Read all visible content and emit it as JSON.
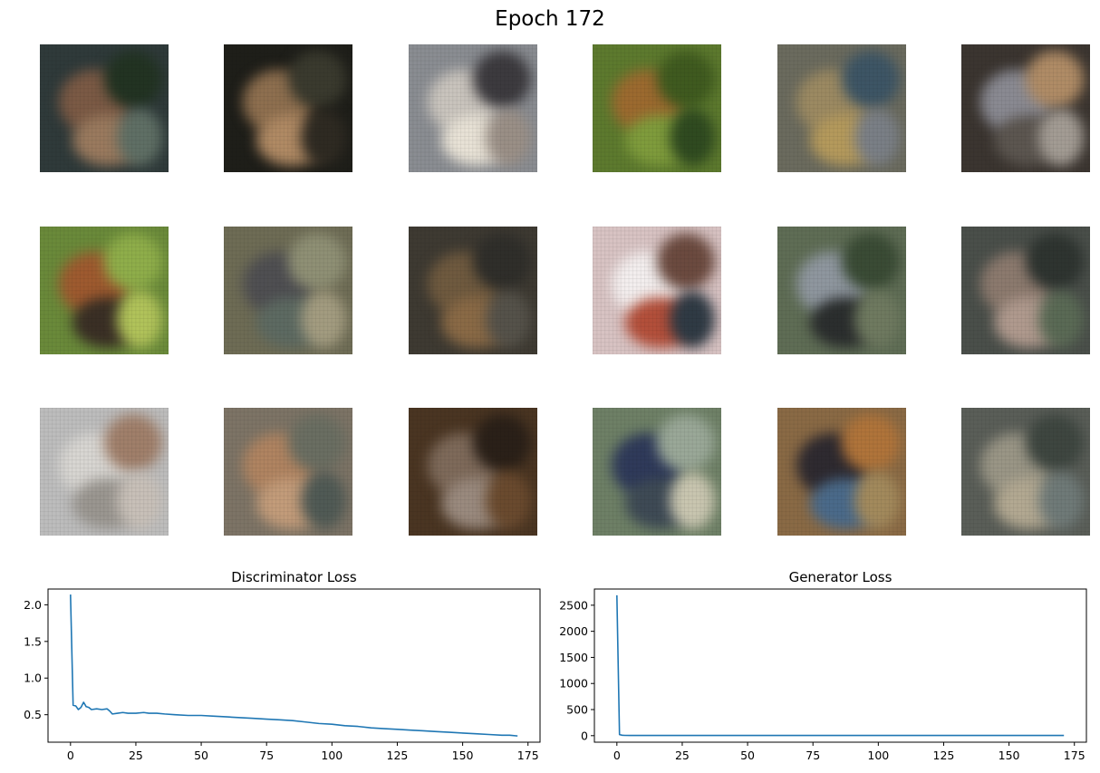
{
  "figure": {
    "title": "Epoch 172"
  },
  "samples": [
    {
      "base": "#2f3a3a",
      "blobs": [
        "#7b5a45",
        "#223322",
        "#9a7a5e",
        "#5f6f65"
      ]
    },
    {
      "base": "#1e1e19",
      "blobs": [
        "#8e6f4f",
        "#3a3a2e",
        "#b08a64",
        "#2e2a22"
      ]
    },
    {
      "base": "#8a8d92",
      "blobs": [
        "#c9c4bd",
        "#3c3a3e",
        "#e8e2d6",
        "#9a8f86"
      ]
    },
    {
      "base": "#5d7a2e",
      "blobs": [
        "#9c6a2f",
        "#3f5a1f",
        "#7f9c3c",
        "#2f4a20"
      ]
    },
    {
      "base": "#6b6b5e",
      "blobs": [
        "#9c8a62",
        "#3d5565",
        "#b59a5c",
        "#7a7f86"
      ]
    },
    {
      "base": "#3b3530",
      "blobs": [
        "#8a8a92",
        "#b08c66",
        "#5c5650",
        "#a39c94"
      ]
    },
    {
      "base": "#6a8a3a",
      "blobs": [
        "#9e5a2f",
        "#8fae4a",
        "#3a2f25",
        "#b1c35a"
      ]
    },
    {
      "base": "#6e6c55",
      "blobs": [
        "#4f4f52",
        "#8f9075",
        "#5d6a62",
        "#a39c80"
      ]
    },
    {
      "base": "#3e3a32",
      "blobs": [
        "#6f5a3f",
        "#2f2e2a",
        "#8a6a46",
        "#55524a"
      ]
    },
    {
      "base": "#d8c3c3",
      "blobs": [
        "#f3eeee",
        "#6b4a3f",
        "#b34f3a",
        "#2f3a44"
      ]
    },
    {
      "base": "#5f6d55",
      "blobs": [
        "#8f979f",
        "#3a4b35",
        "#2b2e2e",
        "#6f7a60"
      ]
    },
    {
      "base": "#4a4f4a",
      "blobs": [
        "#8c7a6e",
        "#2e3430",
        "#b09a8e",
        "#5a6a55"
      ]
    },
    {
      "base": "#bdbdbd",
      "blobs": [
        "#d8d6d2",
        "#a07f6a",
        "#9a9690",
        "#c8c0b8"
      ]
    },
    {
      "base": "#7d7466",
      "blobs": [
        "#b08461",
        "#6a6e62",
        "#c39c7a",
        "#505a55"
      ]
    },
    {
      "base": "#4a3522",
      "blobs": [
        "#7e6a5a",
        "#2a2018",
        "#9a8a7e",
        "#6a4a2e"
      ]
    },
    {
      "base": "#6e8066",
      "blobs": [
        "#2f3a5a",
        "#9aa898",
        "#3e4a55",
        "#c9c6b0"
      ]
    },
    {
      "base": "#8a6a45",
      "blobs": [
        "#2e2a30",
        "#b0743a",
        "#4a6a8a",
        "#a38a5c"
      ]
    },
    {
      "base": "#5a5e58",
      "blobs": [
        "#9a9686",
        "#3e4640",
        "#b3a992",
        "#6f7a78"
      ]
    }
  ],
  "chart_data": [
    {
      "type": "line",
      "title": "Discriminator Loss",
      "xlabel": "",
      "ylabel": "",
      "xlim": [
        -8.6,
        179.6
      ],
      "ylim": [
        0.125,
        2.215
      ],
      "xticks": [
        0,
        25,
        50,
        75,
        100,
        125,
        150,
        175
      ],
      "yticks": [
        0.5,
        1.0,
        1.5,
        2.0
      ],
      "ytick_labels": [
        "0.5",
        "1.0",
        "1.5",
        "2.0"
      ],
      "color": "#1f77b4",
      "grid": false,
      "series": [
        {
          "x": [
            0,
            1,
            2,
            3,
            4,
            5,
            6,
            7,
            8,
            10,
            12,
            14,
            15,
            16,
            18,
            20,
            22,
            25,
            28,
            30,
            33,
            36,
            40,
            45,
            50,
            55,
            60,
            65,
            70,
            75,
            80,
            85,
            90,
            95,
            100,
            105,
            110,
            115,
            120,
            125,
            130,
            135,
            140,
            145,
            150,
            155,
            160,
            165,
            168,
            171
          ],
          "y": [
            2.14,
            0.63,
            0.62,
            0.57,
            0.6,
            0.67,
            0.61,
            0.6,
            0.57,
            0.58,
            0.57,
            0.58,
            0.55,
            0.51,
            0.52,
            0.53,
            0.52,
            0.52,
            0.53,
            0.52,
            0.52,
            0.51,
            0.5,
            0.49,
            0.49,
            0.48,
            0.47,
            0.46,
            0.45,
            0.44,
            0.43,
            0.42,
            0.4,
            0.38,
            0.37,
            0.35,
            0.34,
            0.32,
            0.31,
            0.3,
            0.29,
            0.28,
            0.27,
            0.26,
            0.25,
            0.24,
            0.23,
            0.22,
            0.22,
            0.21
          ]
        }
      ]
    },
    {
      "type": "line",
      "title": "Generator Loss",
      "xlabel": "",
      "ylabel": "",
      "xlim": [
        -8.6,
        179.6
      ],
      "ylim": [
        -125,
        2810
      ],
      "xticks": [
        0,
        25,
        50,
        75,
        100,
        125,
        150,
        175
      ],
      "yticks": [
        0,
        500,
        1000,
        1500,
        2000,
        2500
      ],
      "ytick_labels": [
        "0",
        "500",
        "1000",
        "1500",
        "2000",
        "2500"
      ],
      "color": "#1f77b4",
      "grid": false,
      "series": [
        {
          "x": [
            0,
            1,
            2,
            3,
            5,
            10,
            20,
            40,
            60,
            80,
            100,
            120,
            140,
            160,
            171
          ],
          "y": [
            2690,
            20,
            8,
            5,
            4,
            4,
            4,
            4,
            4,
            4,
            4,
            4,
            4,
            4,
            4
          ]
        }
      ]
    }
  ]
}
